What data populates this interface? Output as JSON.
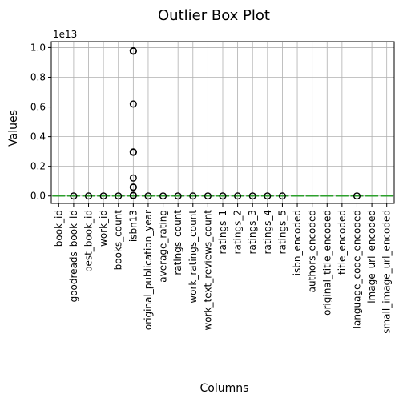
{
  "chart_data": {
    "type": "box",
    "title": "Outlier Box Plot",
    "xlabel": "Columns",
    "ylabel": "Values",
    "y_offset_label": "1e13",
    "y_scale_factor": 10000000000000.0,
    "ylim": [
      -0.05,
      1.04
    ],
    "yticks": [
      0.0,
      0.2,
      0.4,
      0.6,
      0.8,
      1.0
    ],
    "ytick_labels": [
      "0.0",
      "0.2",
      "0.4",
      "0.6",
      "0.8",
      "1.0"
    ],
    "grid": true,
    "colors": {
      "median": "#2ca02c",
      "box": "#000000",
      "flier": "#000000",
      "grid": "#b0b0b0"
    },
    "categories": [
      "book_id",
      "goodreads_book_id",
      "best_book_id",
      "work_id",
      "books_count",
      "isbn13",
      "original_publication_year",
      "average_rating",
      "ratings_count",
      "work_ratings_count",
      "work_text_reviews_count",
      "ratings_1",
      "ratings_2",
      "ratings_3",
      "ratings_4",
      "ratings_5",
      "isbn_encoded",
      "authors_encoded",
      "original_title_encoded",
      "title_encoded",
      "language_code_encoded",
      "image_url_encoded",
      "small_image_url_encoded"
    ],
    "outliers": [
      [],
      [
        0.0
      ],
      [
        0.0
      ],
      [
        0.0
      ],
      [
        0.0
      ],
      [
        0.978,
        0.977,
        0.976,
        0.62,
        0.297,
        0.296,
        0.295,
        0.121,
        0.06,
        0.058,
        0.005,
        0.002
      ],
      [
        0.0
      ],
      [
        0.0
      ],
      [
        0.0
      ],
      [
        0.0
      ],
      [
        0.0
      ],
      [
        0.0
      ],
      [
        0.0
      ],
      [
        0.0
      ],
      [
        0.0
      ],
      [
        0.0
      ],
      [],
      [],
      [],
      [],
      [
        0.0
      ],
      [],
      []
    ]
  }
}
